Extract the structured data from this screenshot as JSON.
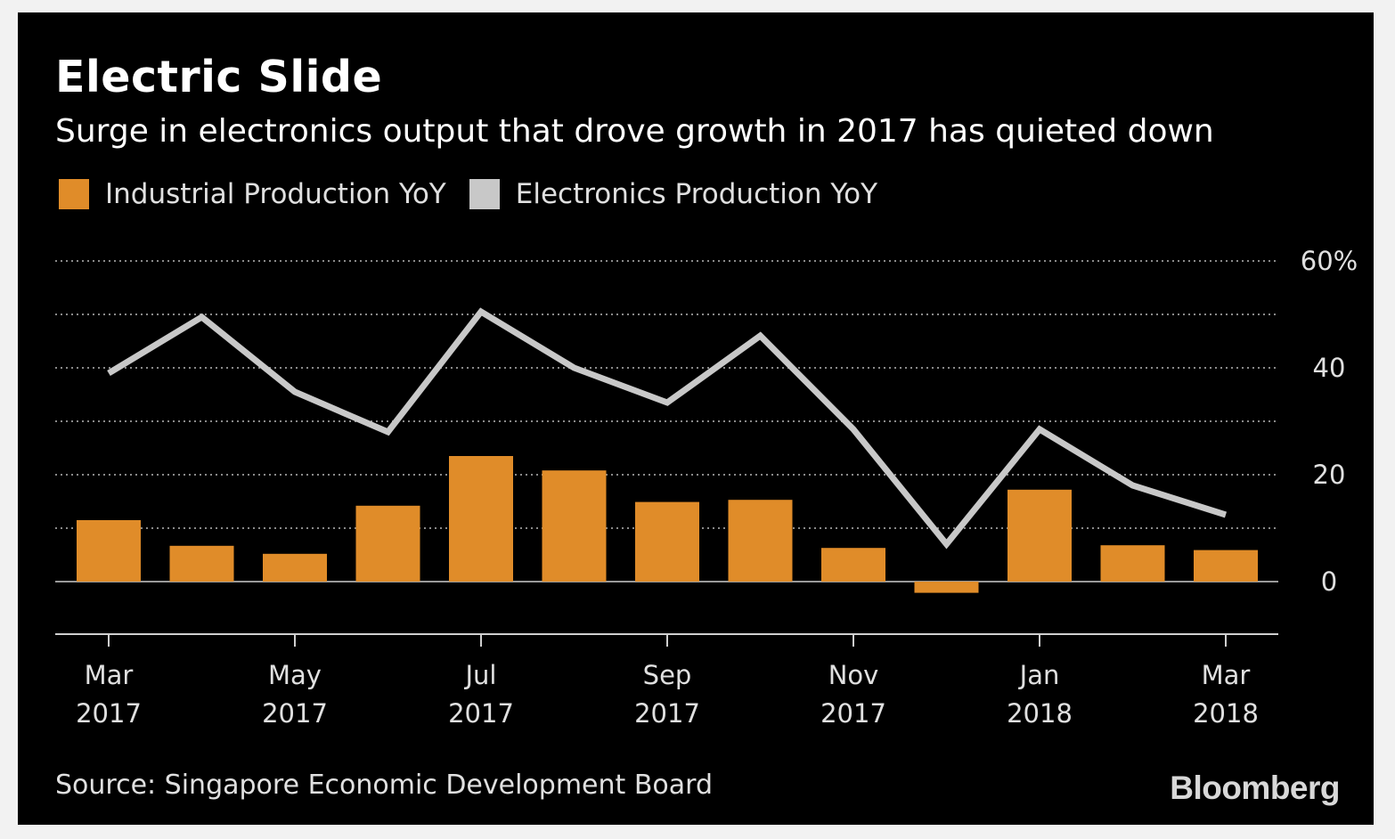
{
  "title": "Electric Slide",
  "subtitle": "Surge in electronics output that drove growth in 2017 has quieted down",
  "source": "Source: Singapore Economic Development Board",
  "logo": "Bloomberg",
  "colors": {
    "background": "#000000",
    "industrial": "#e08c29",
    "electronics": "#c8c8c8",
    "grid": "#8a8a8a",
    "axis": "#cfcfcf",
    "text": "#e0e0e0"
  },
  "chart_data": {
    "type": "bar",
    "x": [
      "2017-03",
      "2017-04",
      "2017-05",
      "2017-06",
      "2017-07",
      "2017-08",
      "2017-09",
      "2017-10",
      "2017-11",
      "2017-12",
      "2018-01",
      "2018-02",
      "2018-03"
    ],
    "series": [
      {
        "name": "Industrial Production YoY",
        "type": "bar",
        "color": "#e08c29",
        "values": [
          11.5,
          6.7,
          5.2,
          14.2,
          23.5,
          20.8,
          14.9,
          15.3,
          6.3,
          -2.1,
          17.2,
          6.8,
          5.9
        ]
      },
      {
        "name": "Electronics Production YoY",
        "type": "line",
        "color": "#c8c8c8",
        "values": [
          39,
          49.5,
          35.5,
          28,
          50.5,
          40,
          33.5,
          46,
          28.5,
          7,
          28.5,
          18,
          12.5
        ]
      }
    ],
    "x_ticks": [
      {
        "month": "Mar",
        "year": "2017"
      },
      {
        "month": "May",
        "year": "2017"
      },
      {
        "month": "Jul",
        "year": "2017"
      },
      {
        "month": "Sep",
        "year": "2017"
      },
      {
        "month": "Nov",
        "year": "2017"
      },
      {
        "month": "Jan",
        "year": "2018"
      },
      {
        "month": "Mar",
        "year": "2018"
      }
    ],
    "y_ticks": [
      "60%",
      "40",
      "20",
      "0"
    ],
    "y_tick_values": [
      60,
      40,
      20,
      0
    ],
    "ylim": [
      -10,
      60
    ],
    "grid": true,
    "grid_style": "dotted",
    "y_axis_position": "right",
    "legend_position": "top-left"
  }
}
